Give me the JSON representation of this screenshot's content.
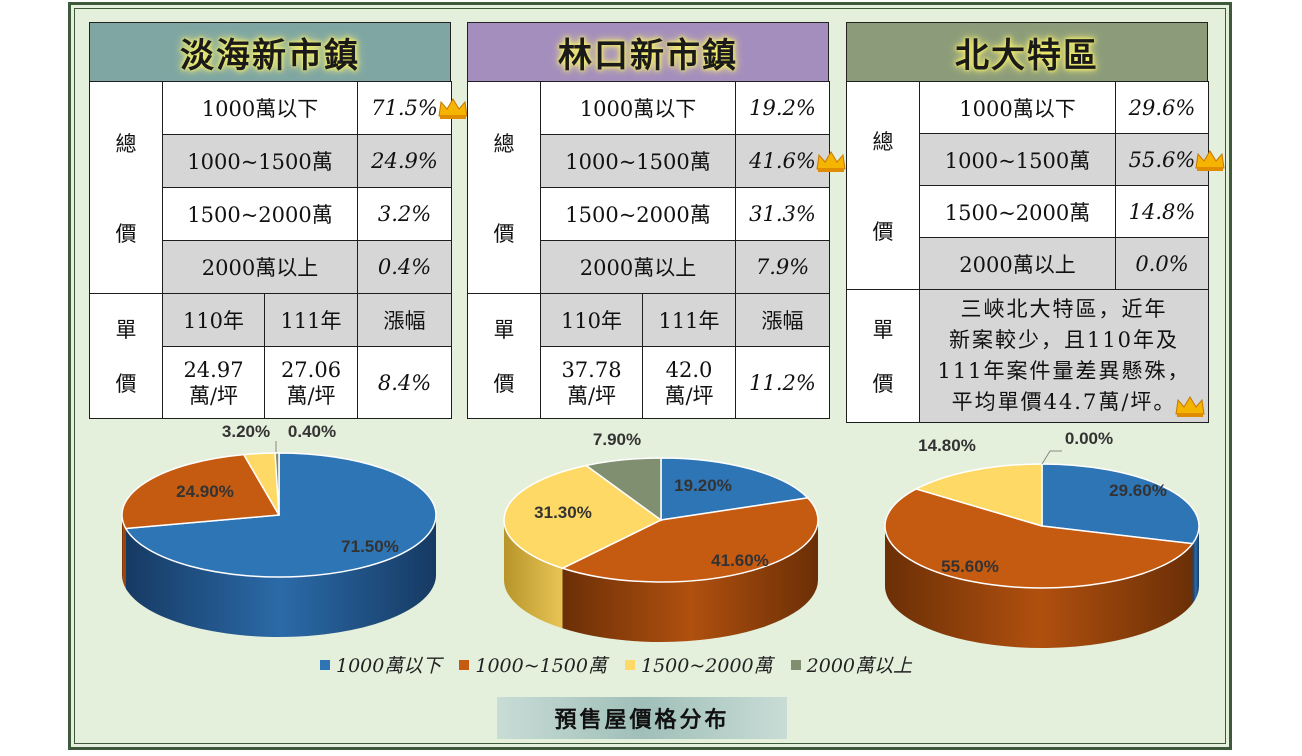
{
  "labels": {
    "total_price": [
      "總",
      "價"
    ],
    "unit_price": [
      "單",
      "價"
    ]
  },
  "colors": {
    "c1": "#2e75b6",
    "c2": "#c55a11",
    "c3": "#ffd966",
    "c4": "#7f8f6f",
    "head1": "#7fa6a3",
    "head2": "#a48ebd",
    "head3": "#8c9c7a"
  },
  "panels": [
    {
      "title": "淡海新市鎮",
      "rows": [
        {
          "range": "1000萬以下",
          "pct": "71.5%"
        },
        {
          "range": "1000~1500萬",
          "pct": "24.9%"
        },
        {
          "range": "1500~2000萬",
          "pct": "3.2%"
        },
        {
          "range": "2000萬以上",
          "pct": "0.4%"
        }
      ],
      "unit": {
        "h1": "110年",
        "h2": "111年",
        "h3": "漲幅",
        "v1a": "24.97",
        "v1b": "萬/坪",
        "v2a": "27.06",
        "v2b": "萬/坪",
        "v3": "8.4%"
      }
    },
    {
      "title": "林口新市鎮",
      "rows": [
        {
          "range": "1000萬以下",
          "pct": "19.2%"
        },
        {
          "range": "1000~1500萬",
          "pct": "41.6%"
        },
        {
          "range": "1500~2000萬",
          "pct": "31.3%"
        },
        {
          "range": "2000萬以上",
          "pct": "7.9%"
        }
      ],
      "unit": {
        "h1": "110年",
        "h2": "111年",
        "h3": "漲幅",
        "v1a": "37.78",
        "v1b": "萬/坪",
        "v2a": "42.0",
        "v2b": "萬/坪",
        "v3": "11.2%"
      }
    },
    {
      "title": "北大特區",
      "rows": [
        {
          "range": "1000萬以下",
          "pct": "29.6%"
        },
        {
          "range": "1000~1500萬",
          "pct": "55.6%"
        },
        {
          "range": "1500~2000萬",
          "pct": "14.8%"
        },
        {
          "range": "2000萬以上",
          "pct": "0.0%"
        }
      ],
      "note": [
        "三峽北大特區，近年",
        "新案較少，且110年及",
        "111年案件量差異懸殊，",
        "平均單價44.7萬/坪。"
      ]
    }
  ],
  "chart_data": [
    {
      "type": "pie",
      "categories": [
        "1000萬以下",
        "1000~1500萬",
        "1500~2000萬",
        "2000萬以上"
      ],
      "values": [
        71.5,
        24.9,
        3.2,
        0.4
      ],
      "labels": [
        "71.50%",
        "24.90%",
        "3.20%",
        "0.40%"
      ]
    },
    {
      "type": "pie",
      "categories": [
        "1000萬以下",
        "1000~1500萬",
        "1500~2000萬",
        "2000萬以上"
      ],
      "values": [
        19.2,
        41.6,
        31.3,
        7.9
      ],
      "labels": [
        "19.20%",
        "41.60%",
        "31.30%",
        "7.90%"
      ]
    },
    {
      "type": "pie",
      "categories": [
        "1000萬以下",
        "1000~1500萬",
        "1500~2000萬",
        "2000萬以上"
      ],
      "values": [
        29.6,
        55.6,
        14.8,
        0.0
      ],
      "labels": [
        "29.60%",
        "55.60%",
        "14.80%",
        "0.00%"
      ]
    }
  ],
  "legend": [
    "1000萬以下",
    "1000~1500萬",
    "1500~2000萬",
    "2000萬以上"
  ],
  "caption": "預售屋價格分布"
}
